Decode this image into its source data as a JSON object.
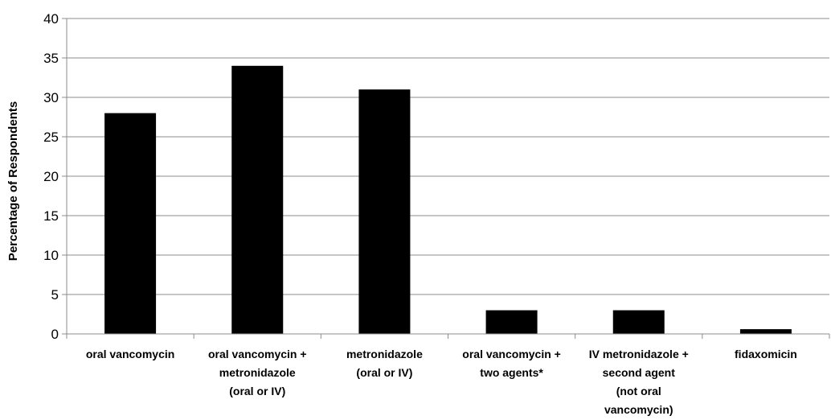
{
  "chart_data": {
    "type": "bar",
    "title": "",
    "xlabel": "",
    "ylabel": "Percentage of Respondents",
    "ylim": [
      0,
      40
    ],
    "yticks": [
      0,
      5,
      10,
      15,
      20,
      25,
      30,
      35,
      40
    ],
    "grid": true,
    "legend": "none",
    "bar_color": "#000000",
    "grid_color": "#8c8c8c",
    "categories": [
      "oral vancomycin",
      "oral vancomycin + metronidazole (oral or IV)",
      "metronidazole (oral or IV)",
      "oral vancomycin + two agents*",
      "IV metronidazole + second agent (not oral vancomycin)",
      "fidaxomicin"
    ],
    "category_lines": [
      [
        "oral vancomycin"
      ],
      [
        "oral vancomycin +",
        "metronidazole",
        "(oral or IV)"
      ],
      [
        "metronidazole",
        "(oral or IV)"
      ],
      [
        "oral vancomycin +",
        "two agents*"
      ],
      [
        "IV metronidazole +",
        "second agent",
        "(not oral",
        "vancomycin)"
      ],
      [
        "fidaxomicin"
      ]
    ],
    "values": [
      28,
      34,
      31,
      3,
      3,
      0.6
    ]
  }
}
